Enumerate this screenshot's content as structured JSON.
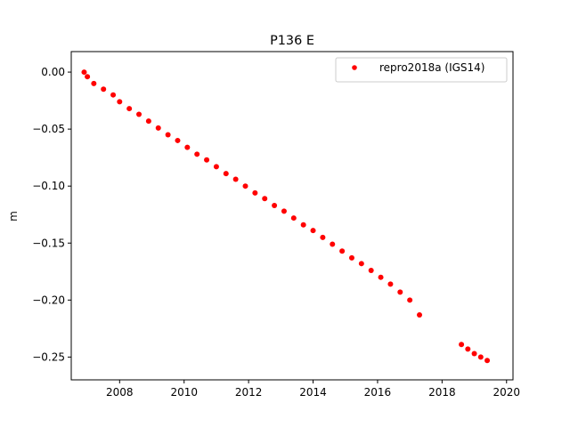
{
  "chart_data": {
    "type": "scatter",
    "title": "P136 E",
    "xlabel": "",
    "ylabel": "m",
    "xlim": [
      2006.5,
      2020.2
    ],
    "ylim": [
      -0.27,
      0.018
    ],
    "x_ticks": [
      2008,
      2010,
      2012,
      2014,
      2016,
      2018,
      2020
    ],
    "x_tick_labels": [
      "2008",
      "2010",
      "2012",
      "2014",
      "2016",
      "2018",
      "2020"
    ],
    "y_ticks": [
      0.0,
      -0.05,
      -0.1,
      -0.15,
      -0.2,
      -0.25
    ],
    "y_tick_labels": [
      "0.00",
      "−0.05",
      "−0.10",
      "−0.15",
      "−0.20",
      "−0.25"
    ],
    "grid": false,
    "legend_position": "upper right",
    "series": [
      {
        "name": "repro2018a (IGS14)",
        "color": "#ff0000",
        "marker": "circle",
        "x": [
          2006.9,
          2007.0,
          2007.2,
          2007.5,
          2007.8,
          2008.0,
          2008.3,
          2008.6,
          2008.9,
          2009.2,
          2009.5,
          2009.8,
          2010.1,
          2010.4,
          2010.7,
          2011.0,
          2011.3,
          2011.6,
          2011.9,
          2012.2,
          2012.5,
          2012.8,
          2013.1,
          2013.4,
          2013.7,
          2014.0,
          2014.3,
          2014.6,
          2014.9,
          2015.2,
          2015.5,
          2015.8,
          2016.1,
          2016.4,
          2016.7,
          2017.0,
          2017.3,
          2018.6,
          2018.8,
          2019.0,
          2019.2,
          2019.4
        ],
        "y": [
          0.0,
          -0.004,
          -0.01,
          -0.015,
          -0.02,
          -0.026,
          -0.032,
          -0.037,
          -0.043,
          -0.049,
          -0.055,
          -0.06,
          -0.066,
          -0.072,
          -0.077,
          -0.083,
          -0.089,
          -0.094,
          -0.1,
          -0.106,
          -0.111,
          -0.117,
          -0.122,
          -0.128,
          -0.134,
          -0.139,
          -0.145,
          -0.151,
          -0.157,
          -0.163,
          -0.168,
          -0.174,
          -0.18,
          -0.186,
          -0.193,
          -0.2,
          -0.213,
          -0.239,
          -0.243,
          -0.247,
          -0.25,
          -0.253
        ]
      }
    ]
  }
}
